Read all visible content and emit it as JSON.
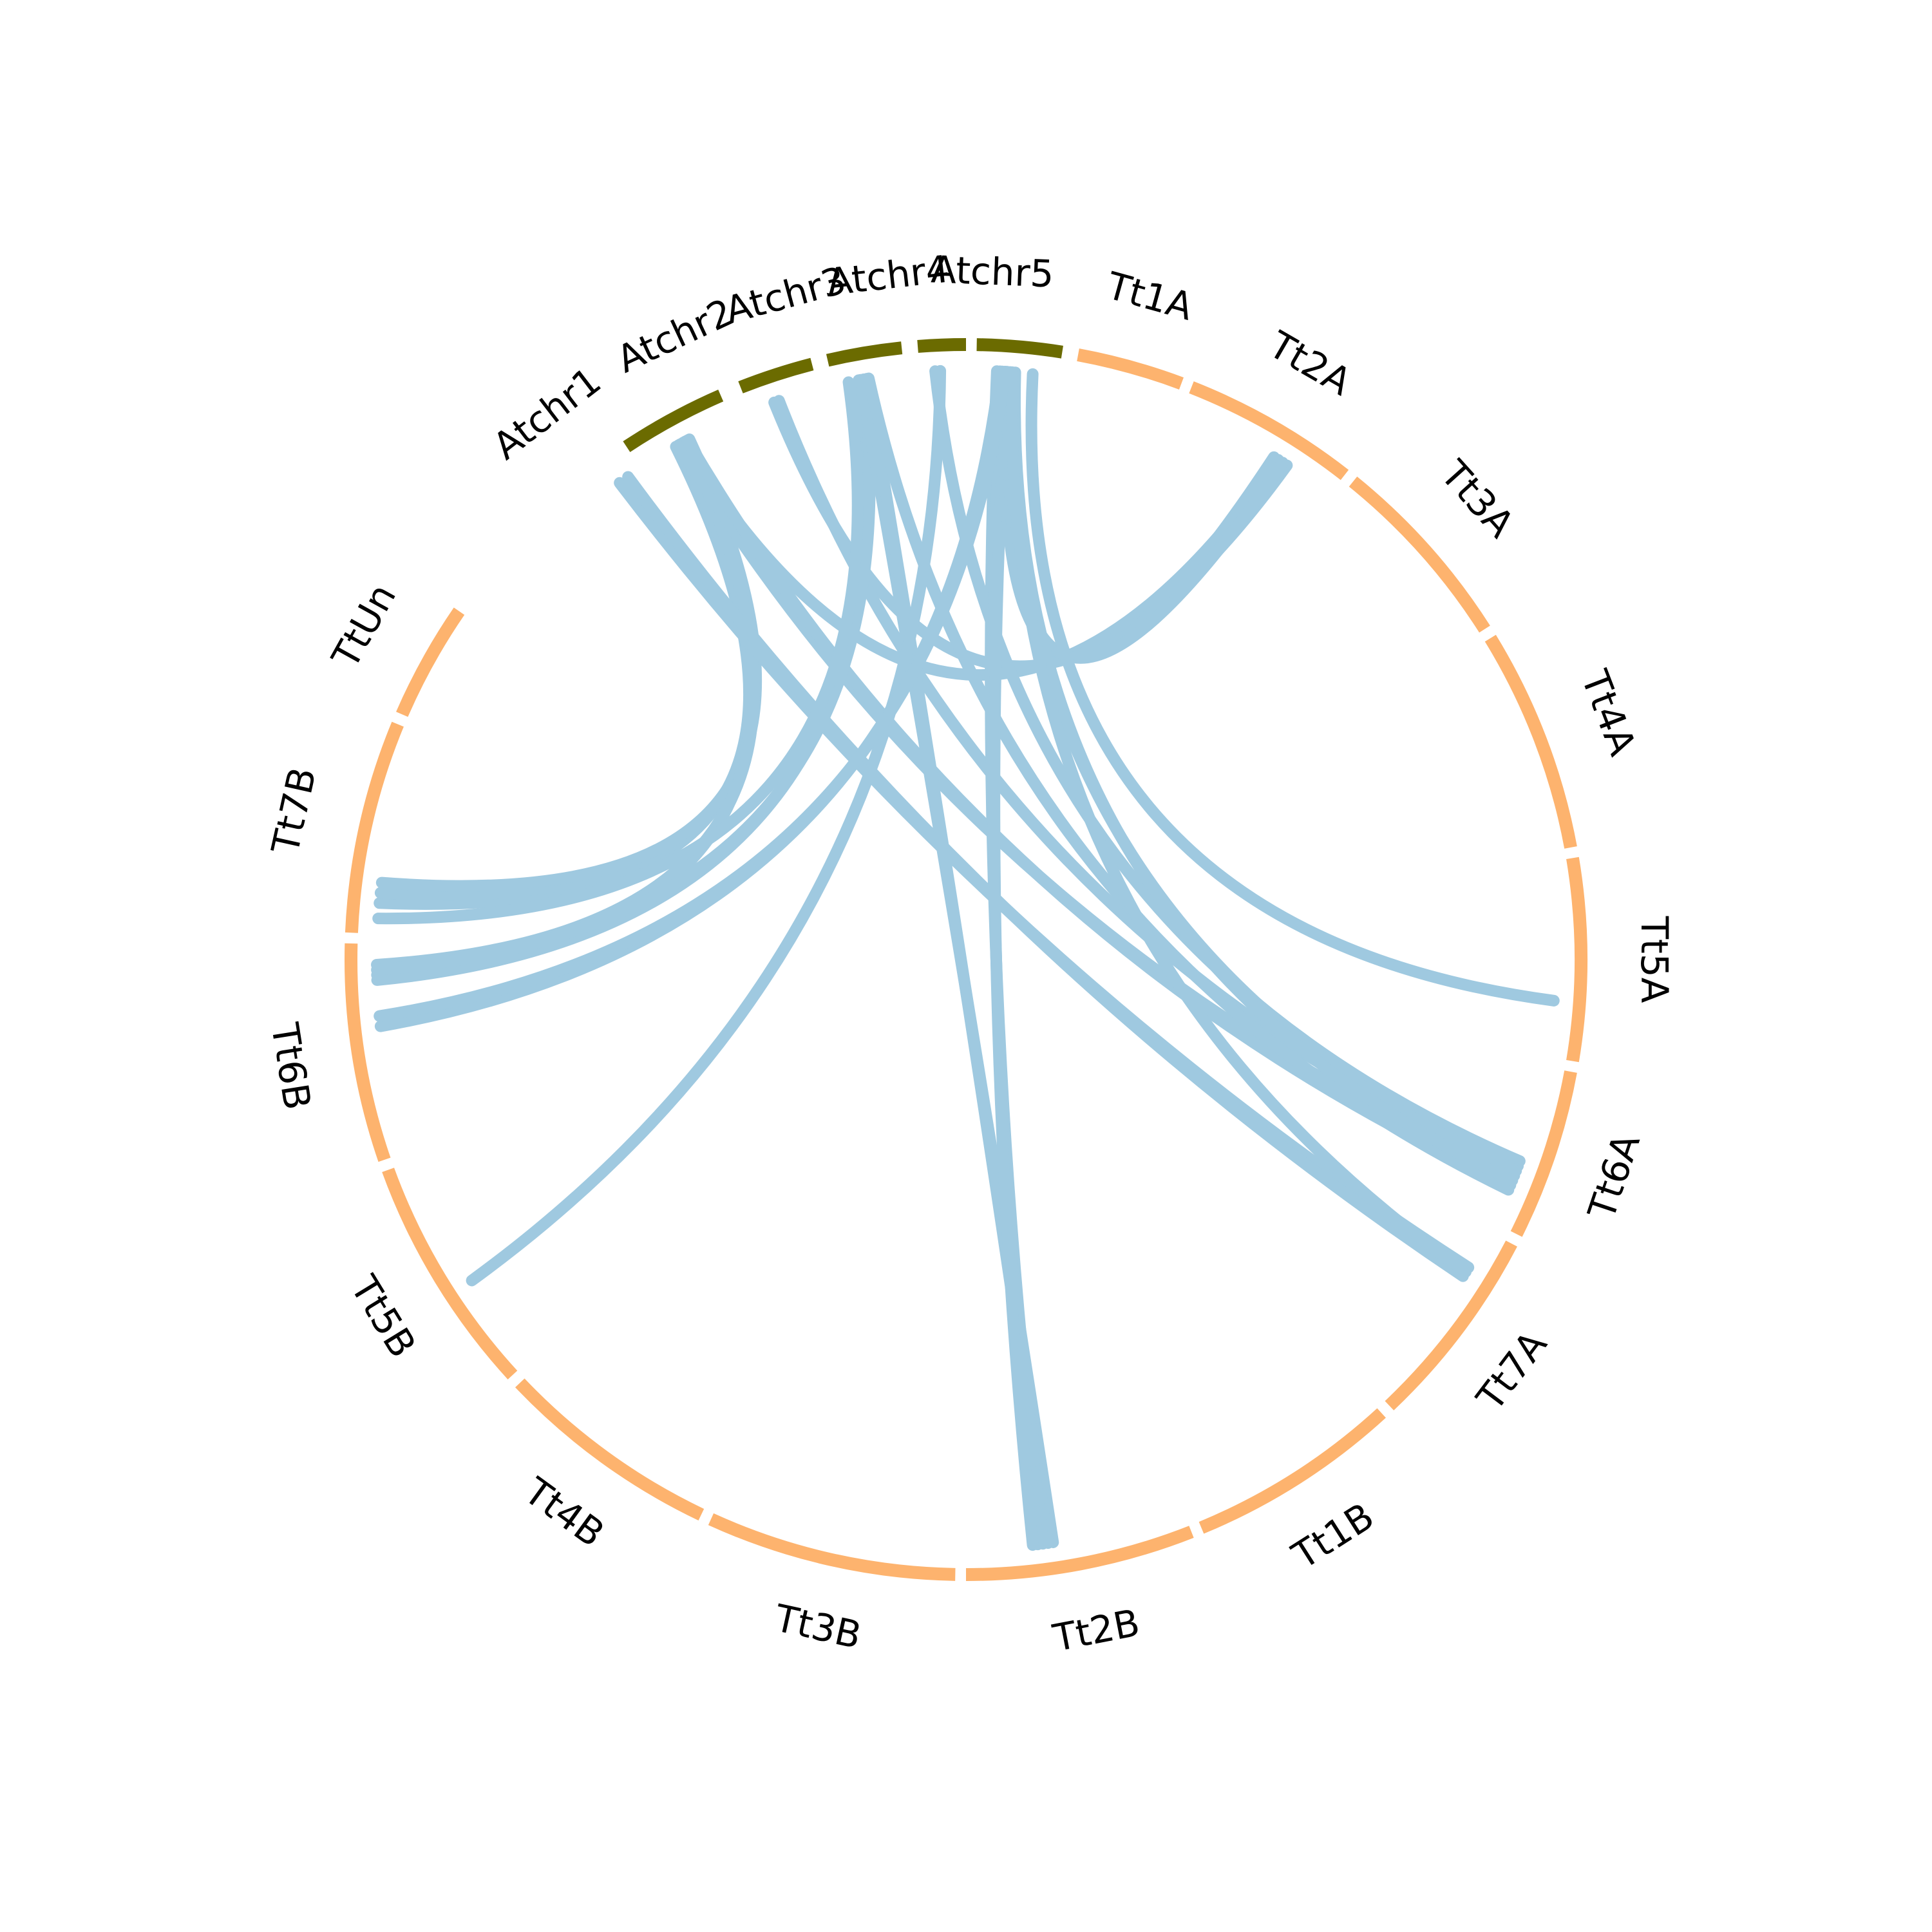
{
  "colors": {
    "subgenome_A_B": "#fdb36e",
    "arabidopsis": "#6b6b00",
    "links": "#9fc9e0",
    "background": "#ffffff"
  },
  "chart_data": {
    "type": "chord",
    "segments": [
      {
        "id": "Atchr1",
        "label": "Atchr1",
        "group": "arabidopsis"
      },
      {
        "id": "Atchr2",
        "label": "Atchr2",
        "group": "arabidopsis"
      },
      {
        "id": "Atchr3",
        "label": "Atchr3",
        "group": "arabidopsis"
      },
      {
        "id": "Atchr4",
        "label": "Atchr4",
        "group": "arabidopsis"
      },
      {
        "id": "Atchr5",
        "label": "Atchr5",
        "group": "arabidopsis"
      },
      {
        "id": "Tt1A",
        "label": "Tt1A",
        "group": "wheat"
      },
      {
        "id": "Tt2A",
        "label": "Tt2A",
        "group": "wheat"
      },
      {
        "id": "Tt3A",
        "label": "Tt3A",
        "group": "wheat"
      },
      {
        "id": "Tt4A",
        "label": "Tt4A",
        "group": "wheat"
      },
      {
        "id": "Tt5A",
        "label": "Tt5A",
        "group": "wheat"
      },
      {
        "id": "Tt6A",
        "label": "Tt6A",
        "group": "wheat"
      },
      {
        "id": "Tt7A",
        "label": "Tt7A",
        "group": "wheat"
      },
      {
        "id": "Tt1B",
        "label": "Tt1B",
        "group": "wheat"
      },
      {
        "id": "Tt2B",
        "label": "Tt2B",
        "group": "wheat"
      },
      {
        "id": "Tt3B",
        "label": "Tt3B",
        "group": "wheat"
      },
      {
        "id": "Tt4B",
        "label": "Tt4B",
        "group": "wheat"
      },
      {
        "id": "Tt5B",
        "label": "Tt5B",
        "group": "wheat"
      },
      {
        "id": "Tt6B",
        "label": "Tt6B",
        "group": "wheat"
      },
      {
        "id": "Tt7B",
        "label": "Tt7B",
        "group": "wheat"
      },
      {
        "id": "TtUn",
        "label": "TtUn",
        "group": "wheat"
      }
    ],
    "links": [
      {
        "from": "Atchr1",
        "to": "Tt7B",
        "count": 3
      },
      {
        "from": "Atchr1",
        "to": "Tt6B",
        "count": 2
      },
      {
        "from": "Atchr1",
        "to": "Tt7A",
        "count": 2
      },
      {
        "from": "Atchr1",
        "to": "Tt2A",
        "count": 1
      },
      {
        "from": "Atchr1",
        "to": "Tt6A",
        "count": 2
      },
      {
        "from": "Atchr2",
        "to": "Tt2A",
        "count": 1
      },
      {
        "from": "Atchr2",
        "to": "Tt6A",
        "count": 1
      },
      {
        "from": "Atchr3",
        "to": "Tt6B",
        "count": 2
      },
      {
        "from": "Atchr3",
        "to": "Tt2B",
        "count": 2
      },
      {
        "from": "Atchr3",
        "to": "Tt6A",
        "count": 1
      },
      {
        "from": "Atchr3",
        "to": "Tt7B",
        "count": 1
      },
      {
        "from": "Atchr4",
        "to": "Tt5B",
        "count": 1
      },
      {
        "from": "Atchr4",
        "to": "Tt6A",
        "count": 1
      },
      {
        "from": "Atchr5",
        "to": "Tt2B",
        "count": 3
      },
      {
        "from": "Atchr5",
        "to": "Tt2A",
        "count": 2
      },
      {
        "from": "Atchr5",
        "to": "Tt5A",
        "count": 1
      },
      {
        "from": "Atchr5",
        "to": "Tt6A",
        "count": 2
      },
      {
        "from": "Atchr5",
        "to": "Tt7A",
        "count": 1
      },
      {
        "from": "Atchr5",
        "to": "Tt6B",
        "count": 2
      }
    ]
  }
}
